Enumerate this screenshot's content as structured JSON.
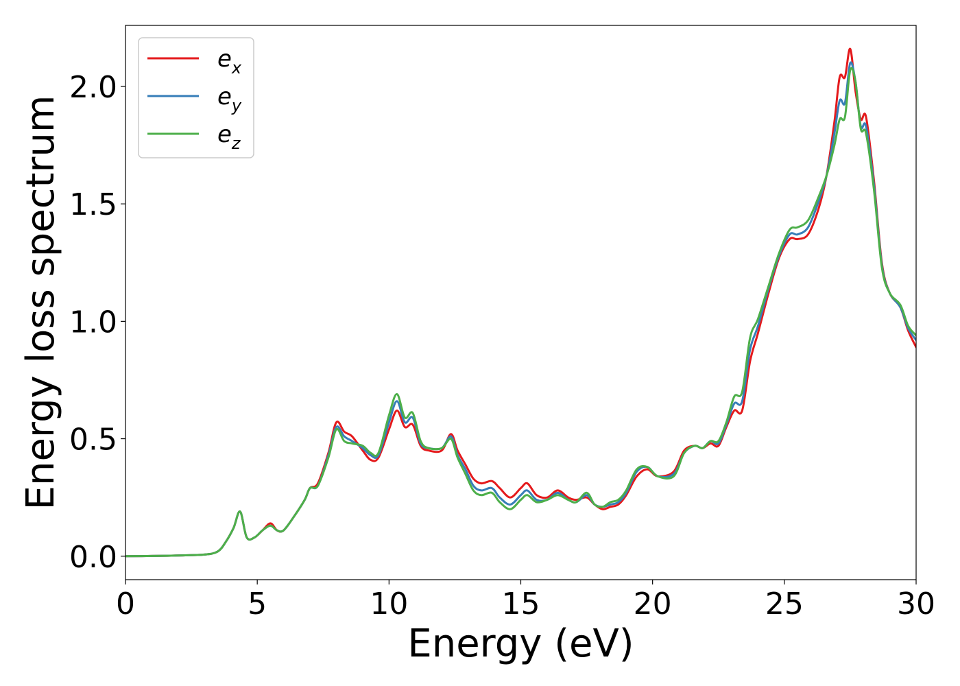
{
  "chart_data": {
    "type": "line",
    "xlabel": "Energy (eV)",
    "ylabel": "Energy loss spectrum",
    "xlim": [
      0,
      30
    ],
    "ylim": [
      -0.1,
      2.26
    ],
    "xticks": [
      0,
      5,
      10,
      15,
      20,
      25,
      30
    ],
    "yticks": [
      0.0,
      0.5,
      1.0,
      1.5,
      2.0
    ],
    "xtick_labels": [
      "0",
      "5",
      "10",
      "15",
      "20",
      "25",
      "30"
    ],
    "ytick_labels": [
      "0.0",
      "0.5",
      "1.0",
      "1.5",
      "2.0"
    ],
    "grid": false,
    "legend_position": "top-left",
    "series": [
      {
        "name": "e_x",
        "legend_base": "e",
        "legend_sub": "x",
        "color": "#e41a1c",
        "x": [
          0,
          1,
          2,
          3,
          3.5,
          3.8,
          4.1,
          4.35,
          4.6,
          4.9,
          5.2,
          5.5,
          5.75,
          6.0,
          6.4,
          6.8,
          7.0,
          7.3,
          7.7,
          8.0,
          8.3,
          8.6,
          9.0,
          9.3,
          9.6,
          10.0,
          10.3,
          10.6,
          10.9,
          11.2,
          11.5,
          12.0,
          12.35,
          12.6,
          12.9,
          13.2,
          13.5,
          13.9,
          14.2,
          14.6,
          15.0,
          15.25,
          15.6,
          16.0,
          16.4,
          16.8,
          17.1,
          17.5,
          17.8,
          18.1,
          18.4,
          18.7,
          19.0,
          19.4,
          19.8,
          20.2,
          20.8,
          21.2,
          21.6,
          21.9,
          22.2,
          22.5,
          22.8,
          23.1,
          23.4,
          23.7,
          24.0,
          24.4,
          24.8,
          25.2,
          25.5,
          25.9,
          26.3,
          26.6,
          26.9,
          27.1,
          27.3,
          27.5,
          27.7,
          27.9,
          28.1,
          28.4,
          28.7,
          29.0,
          29.4,
          29.7,
          30.0
        ],
        "y": [
          0,
          0.001,
          0.003,
          0.007,
          0.02,
          0.06,
          0.12,
          0.19,
          0.08,
          0.08,
          0.11,
          0.14,
          0.11,
          0.11,
          0.17,
          0.24,
          0.29,
          0.31,
          0.44,
          0.57,
          0.53,
          0.51,
          0.45,
          0.41,
          0.42,
          0.54,
          0.62,
          0.55,
          0.56,
          0.47,
          0.45,
          0.45,
          0.52,
          0.45,
          0.39,
          0.33,
          0.31,
          0.32,
          0.29,
          0.25,
          0.29,
          0.31,
          0.26,
          0.25,
          0.28,
          0.25,
          0.24,
          0.25,
          0.22,
          0.2,
          0.21,
          0.22,
          0.26,
          0.34,
          0.37,
          0.34,
          0.36,
          0.45,
          0.47,
          0.46,
          0.48,
          0.47,
          0.55,
          0.62,
          0.62,
          0.83,
          0.95,
          1.12,
          1.27,
          1.35,
          1.35,
          1.37,
          1.48,
          1.62,
          1.85,
          2.04,
          2.04,
          2.16,
          1.98,
          1.86,
          1.87,
          1.6,
          1.25,
          1.12,
          1.06,
          0.96,
          0.89
        ]
      },
      {
        "name": "e_y",
        "legend_base": "e",
        "legend_sub": "y",
        "color": "#377eb8",
        "x": [
          0,
          1,
          2,
          3,
          3.5,
          3.8,
          4.1,
          4.35,
          4.6,
          4.9,
          5.2,
          5.5,
          5.75,
          6.0,
          6.4,
          6.8,
          7.0,
          7.3,
          7.7,
          8.0,
          8.3,
          8.6,
          9.0,
          9.3,
          9.6,
          10.0,
          10.3,
          10.6,
          10.9,
          11.2,
          11.5,
          12.0,
          12.35,
          12.6,
          12.9,
          13.2,
          13.5,
          13.9,
          14.2,
          14.6,
          15.0,
          15.25,
          15.6,
          16.0,
          16.4,
          16.8,
          17.1,
          17.5,
          17.8,
          18.1,
          18.4,
          18.7,
          19.0,
          19.4,
          19.8,
          20.2,
          20.8,
          21.2,
          21.6,
          21.9,
          22.2,
          22.5,
          22.8,
          23.1,
          23.4,
          23.7,
          24.0,
          24.4,
          24.8,
          25.2,
          25.5,
          25.9,
          26.3,
          26.6,
          26.9,
          27.1,
          27.3,
          27.5,
          27.7,
          27.9,
          28.1,
          28.4,
          28.7,
          29.0,
          29.4,
          29.7,
          30.0
        ],
        "y": [
          0,
          0.001,
          0.003,
          0.007,
          0.02,
          0.06,
          0.12,
          0.19,
          0.08,
          0.08,
          0.11,
          0.13,
          0.11,
          0.11,
          0.17,
          0.24,
          0.29,
          0.3,
          0.43,
          0.55,
          0.51,
          0.49,
          0.46,
          0.43,
          0.43,
          0.57,
          0.66,
          0.57,
          0.59,
          0.48,
          0.46,
          0.46,
          0.51,
          0.43,
          0.37,
          0.3,
          0.28,
          0.29,
          0.25,
          0.22,
          0.26,
          0.28,
          0.24,
          0.24,
          0.27,
          0.24,
          0.23,
          0.26,
          0.22,
          0.21,
          0.22,
          0.23,
          0.27,
          0.36,
          0.38,
          0.34,
          0.35,
          0.44,
          0.47,
          0.46,
          0.49,
          0.48,
          0.56,
          0.65,
          0.66,
          0.88,
          0.98,
          1.14,
          1.28,
          1.37,
          1.37,
          1.4,
          1.51,
          1.62,
          1.8,
          1.94,
          1.93,
          2.1,
          2.02,
          1.83,
          1.83,
          1.58,
          1.24,
          1.12,
          1.06,
          0.97,
          0.92
        ]
      },
      {
        "name": "e_z",
        "legend_base": "e",
        "legend_sub": "z",
        "color": "#4daf4a",
        "x": [
          0,
          1,
          2,
          3,
          3.5,
          3.8,
          4.1,
          4.35,
          4.6,
          4.9,
          5.2,
          5.5,
          5.75,
          6.0,
          6.4,
          6.8,
          7.0,
          7.3,
          7.7,
          8.0,
          8.3,
          8.6,
          9.0,
          9.3,
          9.6,
          10.0,
          10.3,
          10.6,
          10.9,
          11.2,
          11.5,
          12.0,
          12.35,
          12.6,
          12.9,
          13.2,
          13.5,
          13.9,
          14.2,
          14.6,
          15.0,
          15.25,
          15.6,
          16.0,
          16.4,
          16.8,
          17.1,
          17.5,
          17.8,
          18.1,
          18.4,
          18.7,
          19.0,
          19.4,
          19.8,
          20.2,
          20.8,
          21.2,
          21.6,
          21.9,
          22.2,
          22.5,
          22.8,
          23.1,
          23.4,
          23.7,
          24.0,
          24.4,
          24.8,
          25.2,
          25.5,
          25.9,
          26.3,
          26.6,
          26.9,
          27.1,
          27.3,
          27.5,
          27.7,
          27.9,
          28.1,
          28.4,
          28.7,
          29.0,
          29.4,
          29.7,
          30.0
        ],
        "y": [
          0,
          0.001,
          0.003,
          0.007,
          0.02,
          0.06,
          0.12,
          0.19,
          0.08,
          0.08,
          0.11,
          0.13,
          0.11,
          0.11,
          0.17,
          0.24,
          0.29,
          0.3,
          0.42,
          0.54,
          0.49,
          0.48,
          0.47,
          0.44,
          0.44,
          0.6,
          0.69,
          0.59,
          0.61,
          0.49,
          0.46,
          0.46,
          0.5,
          0.42,
          0.35,
          0.28,
          0.26,
          0.27,
          0.23,
          0.2,
          0.24,
          0.26,
          0.23,
          0.24,
          0.26,
          0.24,
          0.23,
          0.27,
          0.22,
          0.21,
          0.23,
          0.24,
          0.28,
          0.37,
          0.38,
          0.34,
          0.34,
          0.44,
          0.47,
          0.46,
          0.49,
          0.49,
          0.57,
          0.68,
          0.7,
          0.93,
          1.01,
          1.15,
          1.29,
          1.39,
          1.4,
          1.43,
          1.53,
          1.62,
          1.75,
          1.86,
          1.87,
          2.07,
          2.02,
          1.82,
          1.8,
          1.56,
          1.23,
          1.12,
          1.07,
          0.98,
          0.94
        ]
      }
    ]
  }
}
